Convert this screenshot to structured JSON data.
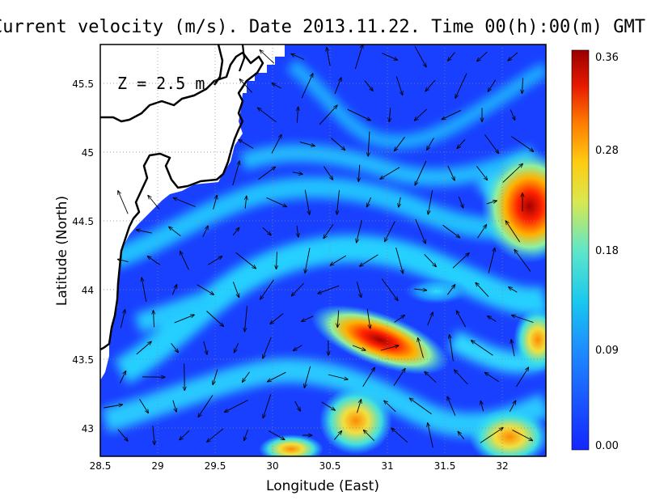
{
  "title": "Current velocity (m/s). Date 2013.11.22. Time 00(h):00(m) GMT",
  "depth_label": "Z = 2.5 m",
  "axes": {
    "x_label": "Longitude (East)",
    "y_label": "Latitude (North)",
    "x_range": [
      28.5,
      32.4
    ],
    "y_range": [
      42.82,
      45.8
    ],
    "x_ticks": [
      "28.5",
      "29",
      "29.5",
      "30",
      "30.5",
      "31",
      "31.5",
      "32"
    ],
    "y_ticks": [
      "43",
      "43.5",
      "44",
      "44.5",
      "45",
      "45.5"
    ],
    "grid": "dotted"
  },
  "colorbar": {
    "range": [
      0.0,
      0.36
    ],
    "ticks": [
      "0.00",
      "0.09",
      "0.18",
      "0.28",
      "0.36"
    ],
    "colormap": "jet"
  },
  "colors": {
    "low": "#1a3cff",
    "mid": "#16c8e8",
    "high": "#b00000",
    "land": "#ffffff",
    "coast": "#000000"
  },
  "hotspots": [
    {
      "lon": 30.85,
      "lat": 43.7,
      "speed": 0.36
    },
    {
      "lon": 32.35,
      "lat": 44.68,
      "speed": 0.33
    },
    {
      "lon": 32.2,
      "lat": 44.45,
      "speed": 0.3
    },
    {
      "lon": 30.8,
      "lat": 42.97,
      "speed": 0.3
    },
    {
      "lon": 31.9,
      "lat": 43.0,
      "speed": 0.26
    },
    {
      "lon": 32.3,
      "lat": 43.7,
      "speed": 0.24
    },
    {
      "lon": 29.9,
      "lat": 42.9,
      "speed": 0.2
    }
  ]
}
